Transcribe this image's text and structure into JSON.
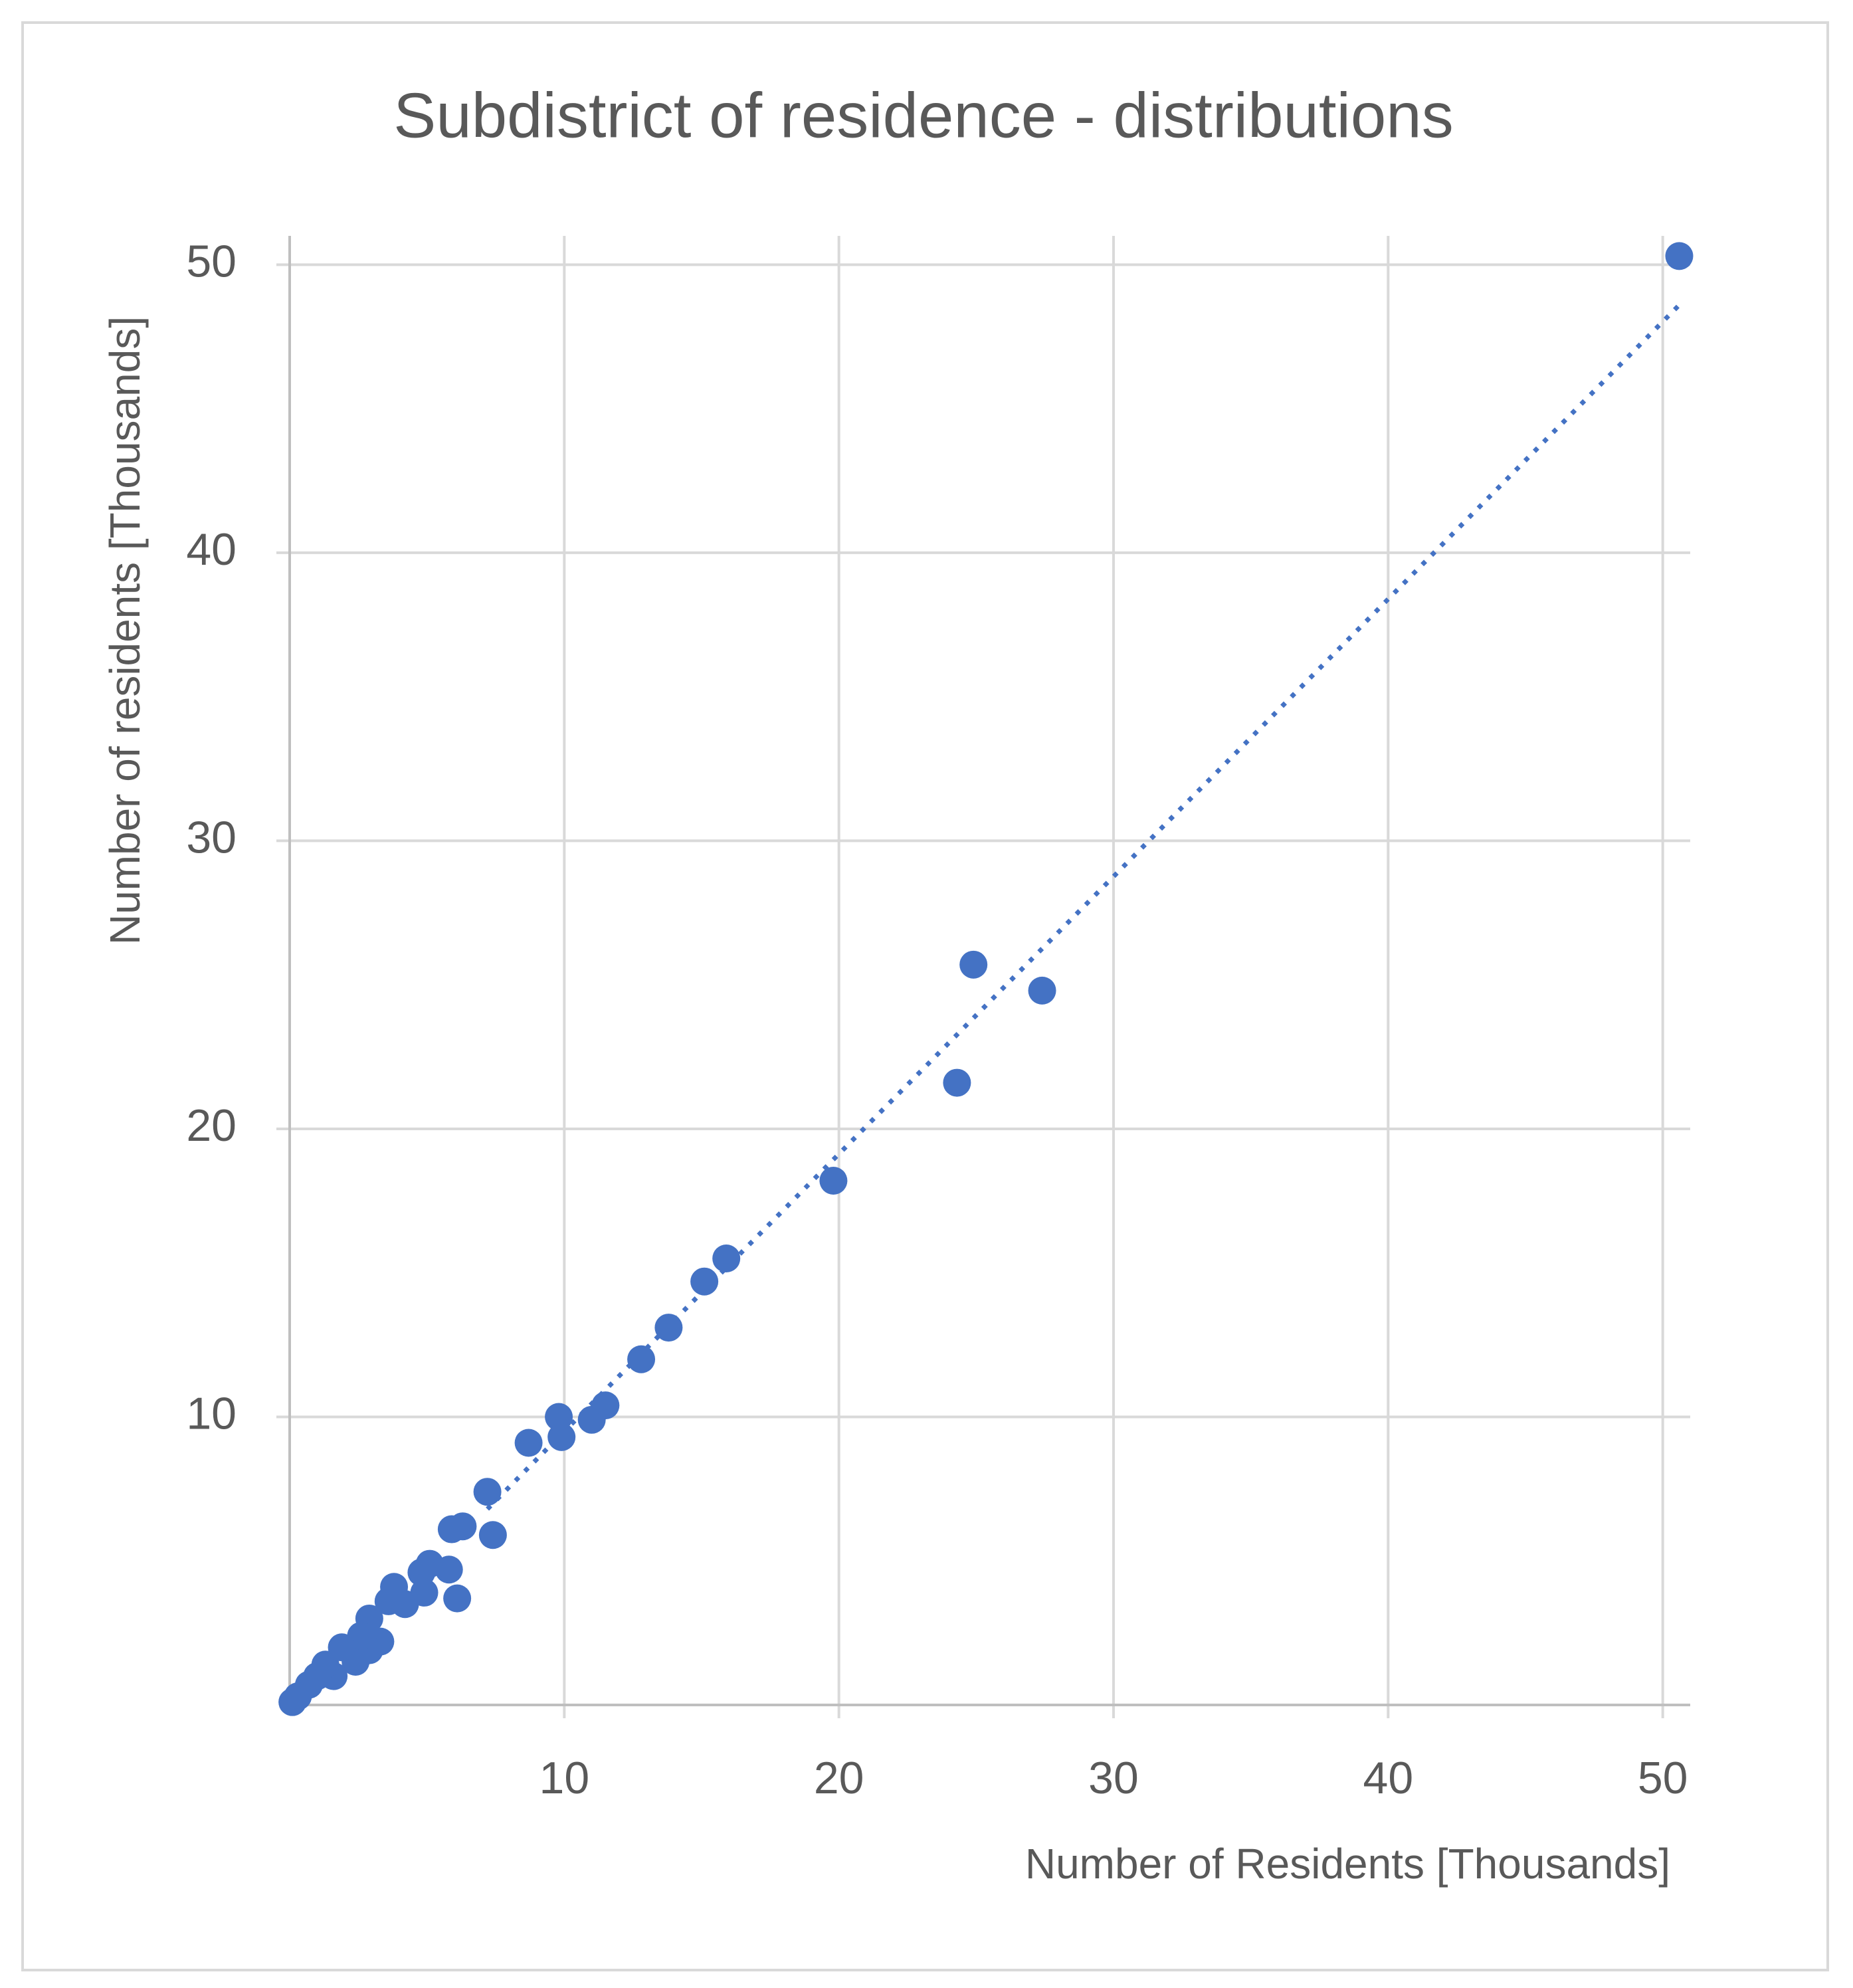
{
  "chart_data": {
    "type": "scatter",
    "title": "Subdistrict of residence - distributions",
    "xlabel": "Number of Residents [Thousands]",
    "ylabel": "Number of residents [Thousands]",
    "x": [
      50.6,
      24.9,
      27.4,
      24.3,
      19.8,
      15.9,
      15.1,
      13.8,
      12.8,
      11.5,
      11.0,
      9.8,
      9.9,
      8.7,
      7.2,
      7.4,
      6.3,
      5.9,
      6.1,
      5.8,
      5.1,
      4.8,
      4.9,
      3.8,
      4.2,
      3.6,
      2.9,
      3.3,
      2.9,
      2.4,
      2.6,
      1.9,
      1.6,
      1.3,
      1.0,
      0.7,
      0.3,
      0.1
    ],
    "values": [
      50.3,
      25.7,
      24.8,
      21.6,
      18.2,
      15.5,
      14.7,
      13.1,
      12.0,
      10.4,
      9.9,
      10.0,
      9.3,
      9.1,
      7.4,
      5.9,
      6.2,
      6.1,
      3.7,
      4.7,
      4.9,
      4.6,
      3.9,
      4.1,
      3.5,
      3.6,
      3.0,
      2.2,
      1.9,
      1.5,
      2.4,
      2.0,
      1.0,
      1.4,
      1.0,
      0.7,
      0.3,
      0.1
    ],
    "color": "#4472c4",
    "trendline": {
      "x": [
        7.2,
        50.6
      ],
      "y": [
        6.8,
        48.6
      ],
      "style": "dotted"
    },
    "xlim": [
      0,
      51
    ],
    "ylim": [
      0,
      51
    ],
    "xticks": [
      10,
      20,
      30,
      40,
      50
    ],
    "yticks": [
      10,
      20,
      30,
      40,
      50
    ],
    "grid": true
  }
}
